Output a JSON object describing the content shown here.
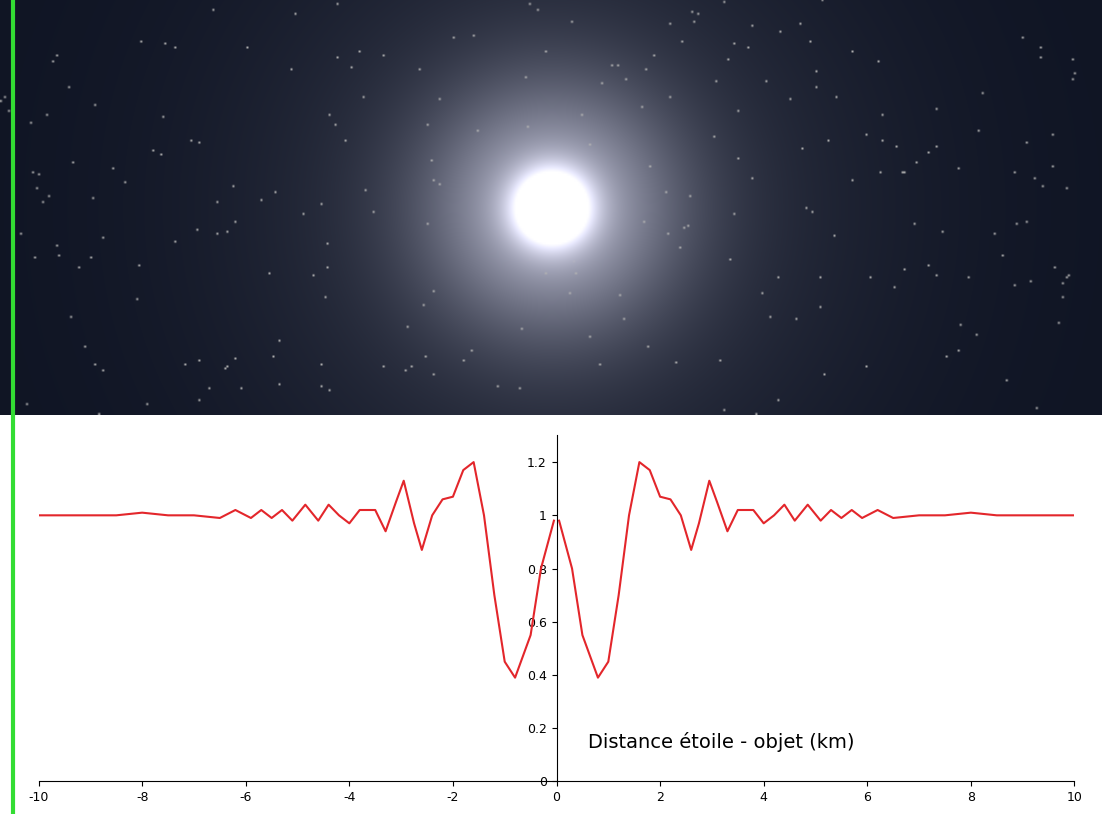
{
  "chart_data": {
    "type": "line",
    "xlabel": "Distance étoile - objet (km)",
    "color": "#e3262b",
    "x": [
      -10,
      -9,
      -8.5,
      -8,
      -7.5,
      -7,
      -6.5,
      -6.2,
      -5.9,
      -5.7,
      -5.5,
      -5.3,
      -5.1,
      -4.85,
      -4.6,
      -4.4,
      -4.2,
      -4,
      -3.8,
      -3.5,
      -3.3,
      -3.1,
      -2.95,
      -2.75,
      -2.6,
      -2.4,
      -2.2,
      -2,
      -1.8,
      -1.6,
      -1.4,
      -1.2,
      -1,
      -0.8,
      -0.5,
      -0.3,
      -0.05,
      0,
      0.05,
      0.3,
      0.5,
      0.8,
      1,
      1.2,
      1.4,
      1.6,
      1.8,
      2,
      2.2,
      2.4,
      2.6,
      2.75,
      2.95,
      3.1,
      3.3,
      3.5,
      3.8,
      4,
      4.2,
      4.4,
      4.6,
      4.85,
      5.1,
      5.3,
      5.5,
      5.7,
      5.9,
      6.2,
      6.5,
      7,
      7.5,
      8,
      8.5,
      9,
      10
    ],
    "values": [
      1.0,
      1.0,
      1.0,
      1.01,
      1.0,
      1.0,
      0.99,
      1.02,
      0.99,
      1.02,
      0.99,
      1.02,
      0.98,
      1.04,
      0.98,
      1.04,
      1.0,
      0.97,
      1.02,
      1.02,
      0.94,
      1.05,
      1.13,
      0.97,
      0.87,
      1.0,
      1.06,
      1.07,
      1.17,
      1.2,
      1.0,
      0.7,
      0.45,
      0.39,
      0.55,
      0.8,
      0.98,
      null,
      0.98,
      0.8,
      0.55,
      0.39,
      0.45,
      0.7,
      1.0,
      1.2,
      1.17,
      1.07,
      1.06,
      1.0,
      0.87,
      0.97,
      1.13,
      1.05,
      0.94,
      1.02,
      1.02,
      0.97,
      1.0,
      1.04,
      0.98,
      1.04,
      0.98,
      1.02,
      0.99,
      1.02,
      0.99,
      1.02,
      0.99,
      1.0,
      1.0,
      1.01,
      1.0,
      1.0,
      1.0
    ],
    "xlim": [
      -10,
      10
    ],
    "xticks": [
      -10,
      -8,
      -6,
      -4,
      -2,
      0,
      2,
      4,
      6,
      8,
      10
    ],
    "ylim": [
      0,
      1.3
    ],
    "yticks": [
      0,
      0.2,
      0.4,
      0.6,
      0.8,
      1,
      1.2
    ],
    "grid": false
  }
}
